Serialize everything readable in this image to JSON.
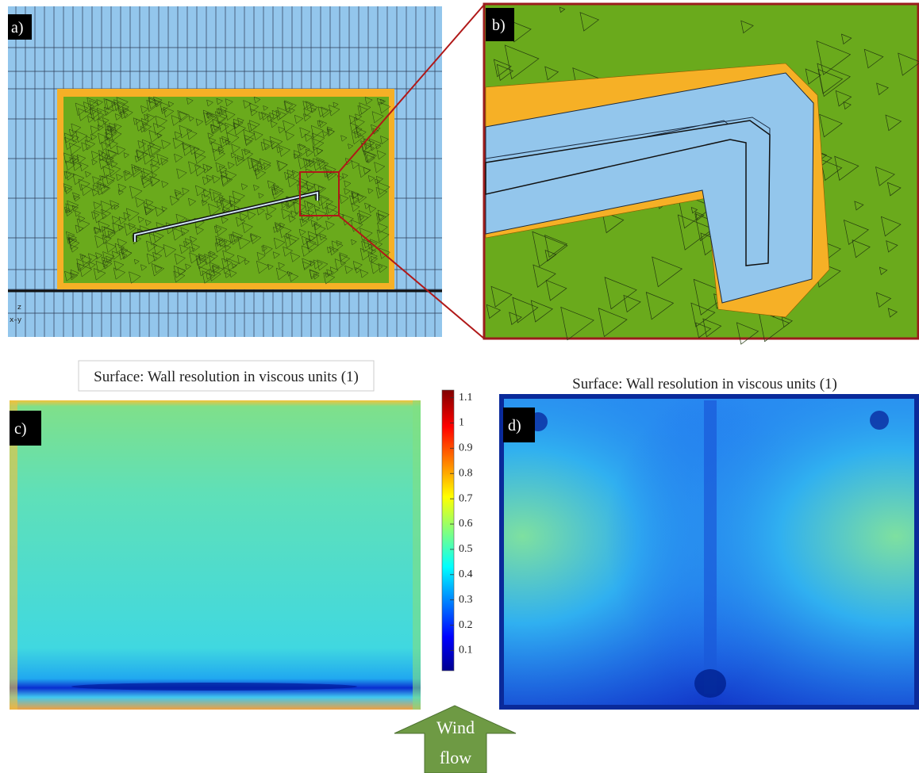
{
  "panels": {
    "a": {
      "label": "a)",
      "axis_z": "z",
      "axis_xy": "x–y"
    },
    "b": {
      "label": "b)"
    },
    "c": {
      "label": "c)",
      "title": "Surface: Wall resolution in viscous units (1)"
    },
    "d": {
      "label": "d)",
      "title": "Surface: Wall resolution in viscous units (1)"
    }
  },
  "colorbar": {
    "range": [
      0.02,
      1.13
    ],
    "ticks": [
      0.1,
      0.2,
      0.3,
      0.4,
      0.5,
      0.6,
      0.7,
      0.8,
      0.9,
      1,
      1.1
    ]
  },
  "wind_label": [
    "Wind",
    "flow"
  ]
}
